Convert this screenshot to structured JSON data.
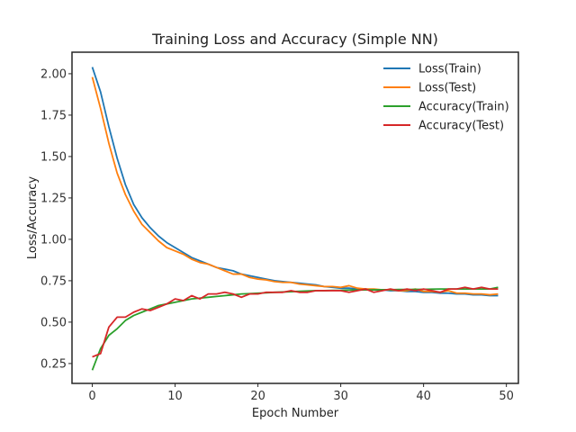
{
  "chart_data": {
    "type": "line",
    "title": "Training Loss and Accuracy (Simple NN)",
    "xlabel": "Epoch Number",
    "ylabel": "Loss/Accuracy",
    "xlim": [
      -2.45,
      51.45
    ],
    "ylim": [
      0.13,
      2.13
    ],
    "xticks": [
      0,
      10,
      20,
      30,
      40,
      50
    ],
    "yticks": [
      0.25,
      0.5,
      0.75,
      1.0,
      1.25,
      1.5,
      1.75,
      2.0
    ],
    "grid": false,
    "legend_position": "upper-right",
    "x": [
      0,
      1,
      2,
      3,
      4,
      5,
      6,
      7,
      8,
      9,
      10,
      11,
      12,
      13,
      14,
      15,
      16,
      17,
      18,
      19,
      20,
      21,
      22,
      23,
      24,
      25,
      26,
      27,
      28,
      29,
      30,
      31,
      32,
      33,
      34,
      35,
      36,
      37,
      38,
      39,
      40,
      41,
      42,
      43,
      44,
      45,
      46,
      47,
      48,
      49
    ],
    "series": [
      {
        "name": "Loss(Train)",
        "color": "#1f77b4",
        "values": [
          2.04,
          1.89,
          1.68,
          1.49,
          1.33,
          1.21,
          1.13,
          1.07,
          1.02,
          0.98,
          0.95,
          0.92,
          0.89,
          0.87,
          0.85,
          0.83,
          0.82,
          0.81,
          0.79,
          0.78,
          0.77,
          0.76,
          0.75,
          0.745,
          0.74,
          0.735,
          0.73,
          0.725,
          0.715,
          0.71,
          0.705,
          0.705,
          0.7,
          0.7,
          0.695,
          0.695,
          0.69,
          0.69,
          0.685,
          0.685,
          0.68,
          0.68,
          0.675,
          0.675,
          0.67,
          0.67,
          0.665,
          0.665,
          0.66,
          0.66
        ]
      },
      {
        "name": "Loss(Test)",
        "color": "#ff7f0e",
        "values": [
          1.98,
          1.79,
          1.58,
          1.4,
          1.27,
          1.17,
          1.09,
          1.04,
          0.99,
          0.95,
          0.93,
          0.91,
          0.88,
          0.86,
          0.85,
          0.83,
          0.81,
          0.79,
          0.79,
          0.77,
          0.76,
          0.755,
          0.745,
          0.74,
          0.74,
          0.73,
          0.725,
          0.72,
          0.715,
          0.715,
          0.71,
          0.72,
          0.705,
          0.7,
          0.7,
          0.695,
          0.695,
          0.69,
          0.69,
          0.7,
          0.685,
          0.685,
          0.68,
          0.69,
          0.675,
          0.675,
          0.67,
          0.67,
          0.665,
          0.67
        ]
      },
      {
        "name": "Accuracy(Train)",
        "color": "#2ca02c",
        "values": [
          0.21,
          0.34,
          0.42,
          0.46,
          0.51,
          0.54,
          0.56,
          0.58,
          0.6,
          0.61,
          0.62,
          0.63,
          0.64,
          0.645,
          0.65,
          0.655,
          0.66,
          0.665,
          0.67,
          0.672,
          0.675,
          0.677,
          0.68,
          0.682,
          0.684,
          0.686,
          0.688,
          0.69,
          0.69,
          0.692,
          0.692,
          0.694,
          0.694,
          0.695,
          0.695,
          0.696,
          0.696,
          0.697,
          0.697,
          0.698,
          0.698,
          0.699,
          0.7,
          0.7,
          0.7,
          0.7,
          0.7,
          0.7,
          0.7,
          0.71
        ]
      },
      {
        "name": "Accuracy(Test)",
        "color": "#d62728",
        "values": [
          0.29,
          0.31,
          0.47,
          0.53,
          0.53,
          0.56,
          0.58,
          0.57,
          0.59,
          0.61,
          0.64,
          0.63,
          0.66,
          0.64,
          0.67,
          0.67,
          0.68,
          0.67,
          0.65,
          0.67,
          0.67,
          0.68,
          0.68,
          0.68,
          0.69,
          0.68,
          0.68,
          0.69,
          0.69,
          0.69,
          0.69,
          0.68,
          0.69,
          0.7,
          0.68,
          0.69,
          0.7,
          0.69,
          0.7,
          0.69,
          0.7,
          0.69,
          0.68,
          0.7,
          0.7,
          0.71,
          0.7,
          0.71,
          0.7,
          0.7
        ]
      }
    ]
  }
}
